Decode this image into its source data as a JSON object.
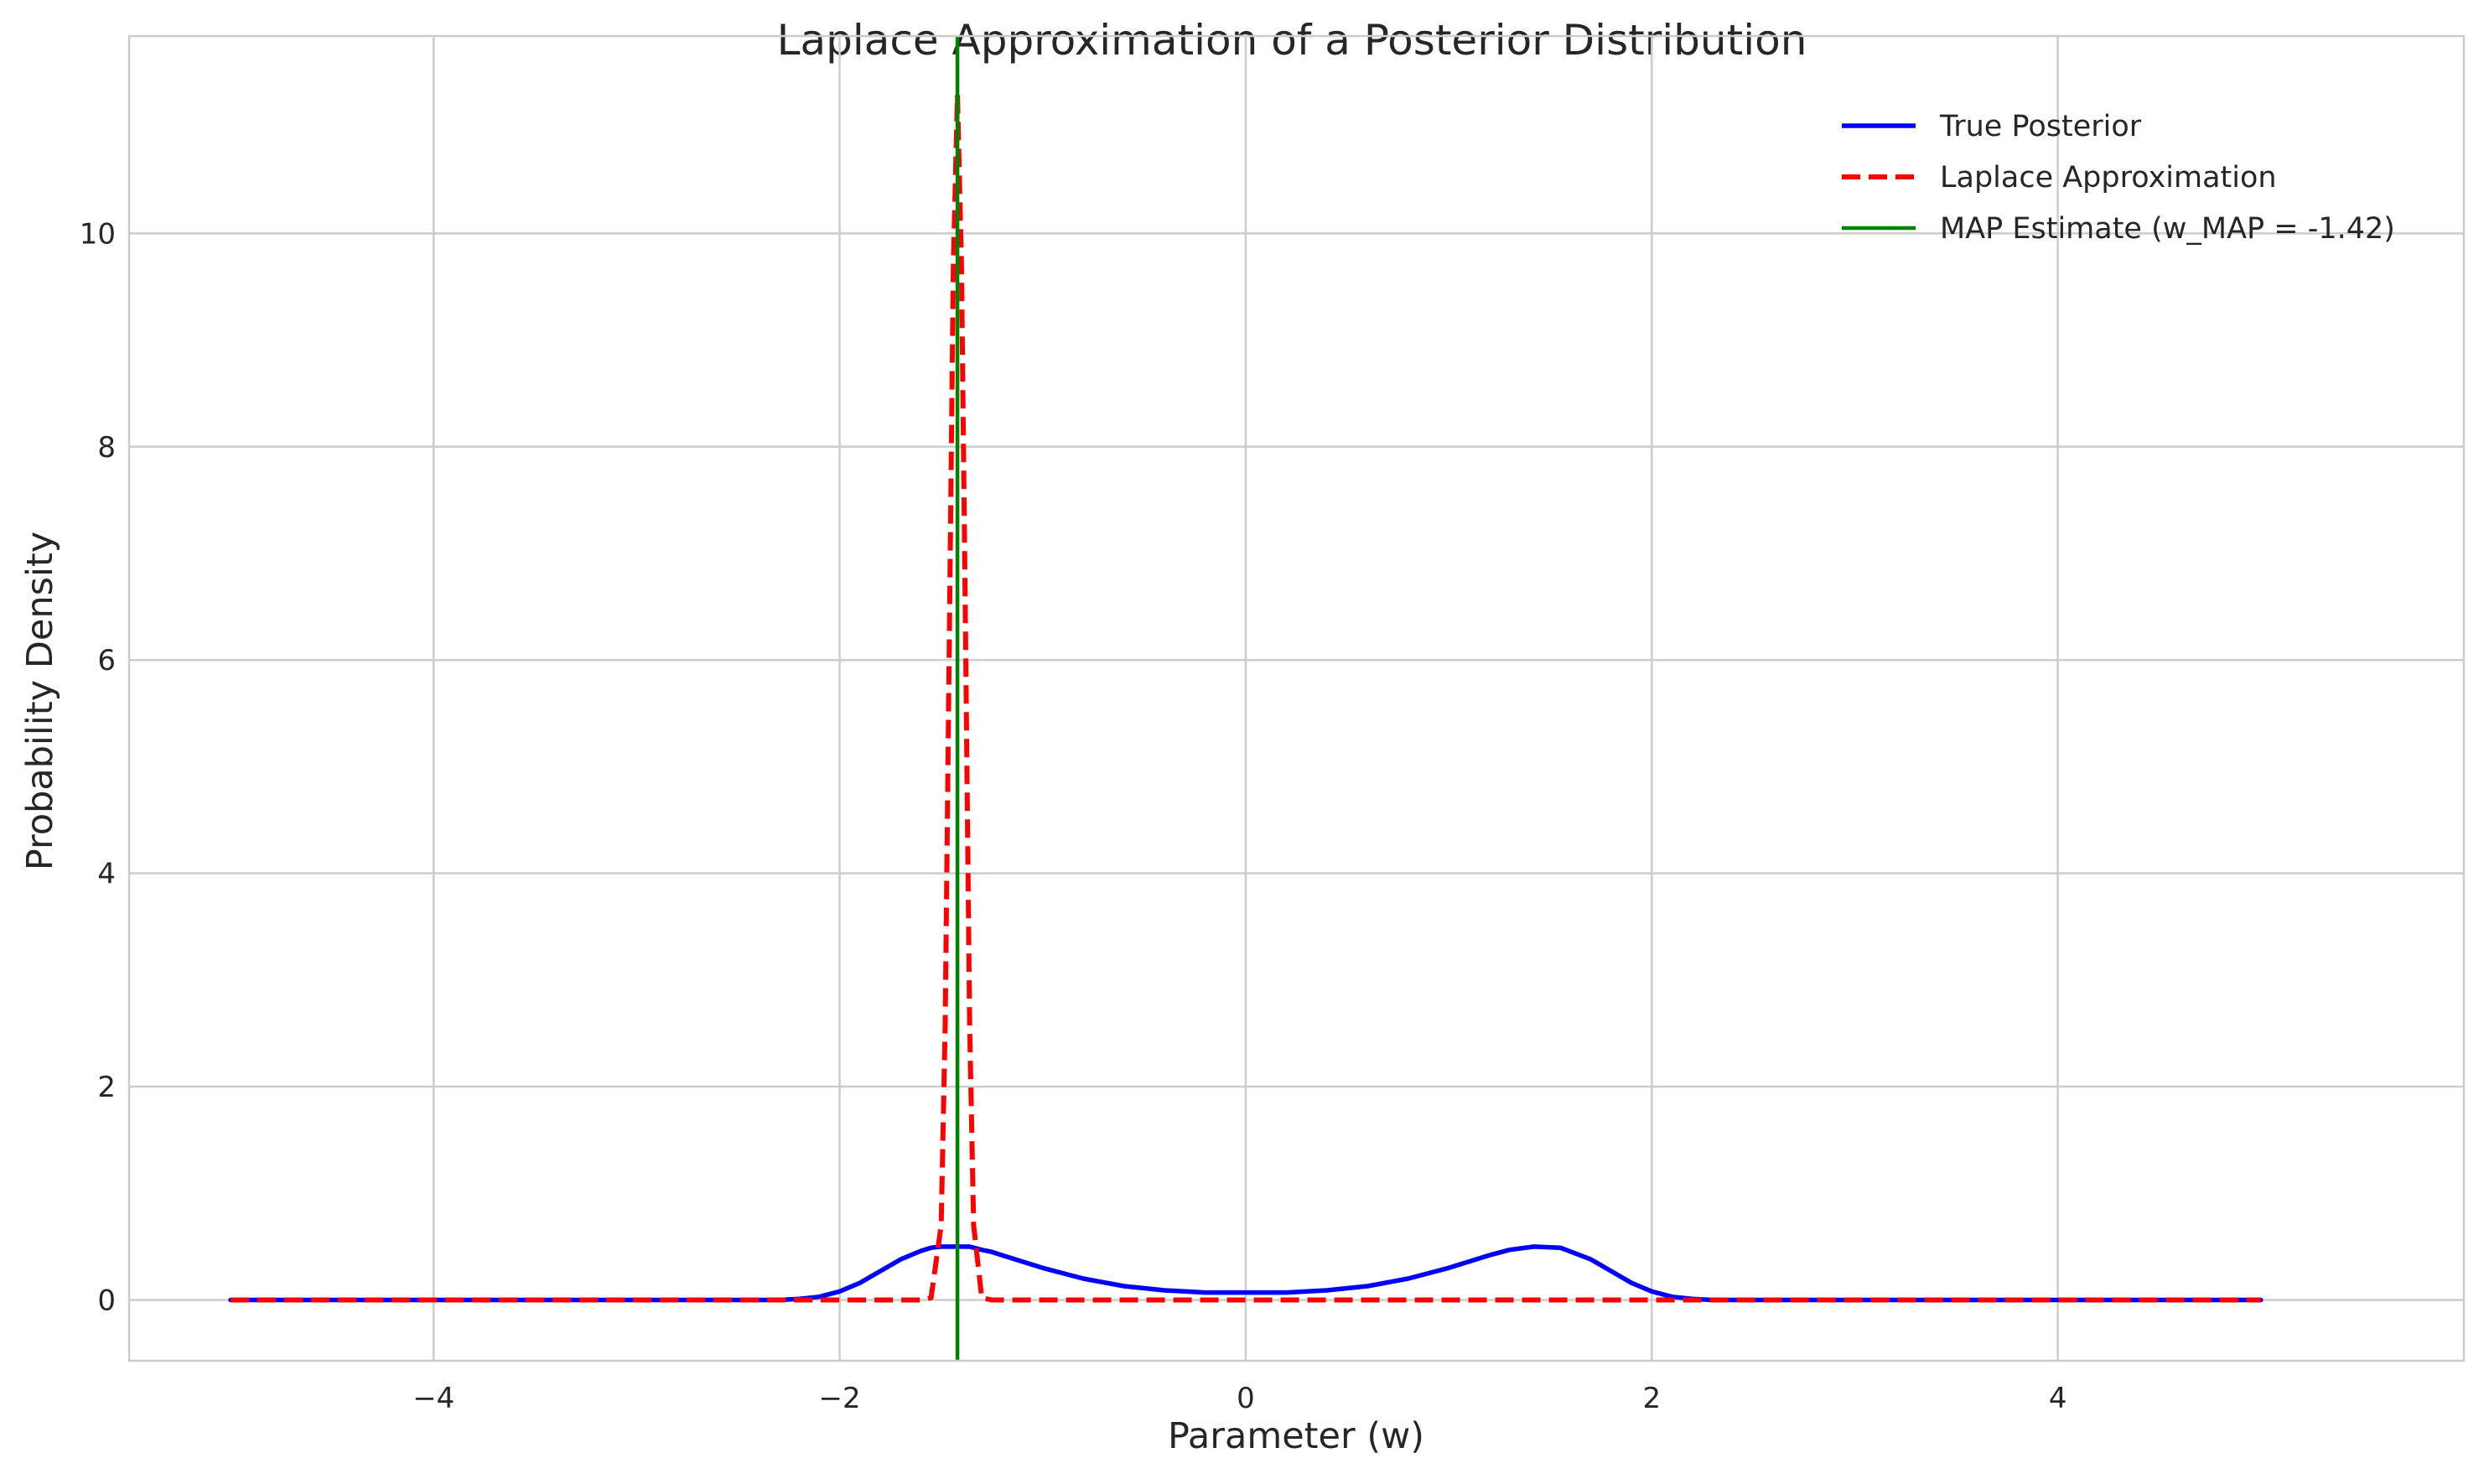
{
  "chart_data": {
    "type": "line",
    "title": "Laplace Approximation of a Posterior Distribution",
    "xlabel": "Parameter (w)",
    "ylabel": "Probability Density",
    "xlim": [
      -5.5,
      6.0
    ],
    "ylim": [
      -0.57,
      11.85
    ],
    "xticks": [
      -4,
      -2,
      0,
      2,
      4
    ],
    "xtick_labels": [
      "−4",
      "−2",
      "0",
      "2",
      "4"
    ],
    "yticks": [
      0,
      2,
      4,
      6,
      8,
      10
    ],
    "ytick_labels": [
      "0",
      "2",
      "4",
      "6",
      "8",
      "10"
    ],
    "grid": true,
    "legend_position": "top-right",
    "x": [
      -5.0,
      -4.5,
      -4.0,
      -3.5,
      -3.0,
      -2.5,
      -2.3,
      -2.2,
      -2.1,
      -2.0,
      -1.9,
      -1.8,
      -1.7,
      -1.6,
      -1.55,
      -1.5,
      -1.48,
      -1.46,
      -1.44,
      -1.42,
      -1.4,
      -1.38,
      -1.36,
      -1.34,
      -1.3,
      -1.25,
      -1.2,
      -1.1,
      -1.0,
      -0.8,
      -0.6,
      -0.4,
      -0.2,
      0.0,
      0.2,
      0.4,
      0.6,
      0.8,
      1.0,
      1.2,
      1.3,
      1.42,
      1.55,
      1.7,
      1.8,
      1.9,
      2.0,
      2.1,
      2.2,
      2.3,
      2.5,
      3.0,
      3.5,
      4.0,
      4.5,
      5.0
    ],
    "series": [
      {
        "name": "True Posterior",
        "color": "#0000ff",
        "style": "solid",
        "values": [
          0.0,
          0.0,
          0.0,
          0.0,
          0.0,
          0.0,
          0.0,
          0.01,
          0.03,
          0.08,
          0.16,
          0.27,
          0.38,
          0.46,
          0.49,
          0.5,
          0.5,
          0.5,
          0.5,
          0.5,
          0.5,
          0.5,
          0.5,
          0.49,
          0.47,
          0.45,
          0.42,
          0.36,
          0.3,
          0.2,
          0.13,
          0.09,
          0.07,
          0.07,
          0.07,
          0.09,
          0.13,
          0.2,
          0.3,
          0.42,
          0.47,
          0.5,
          0.49,
          0.38,
          0.27,
          0.16,
          0.08,
          0.03,
          0.01,
          0.0,
          0.0,
          0.0,
          0.0,
          0.0,
          0.0,
          0.0
        ]
      },
      {
        "name": "Laplace Approximation",
        "color": "#ff0000",
        "style": "dashed",
        "values": [
          0.0,
          0.0,
          0.0,
          0.0,
          0.0,
          0.0,
          0.0,
          0.0,
          0.0,
          0.0,
          0.0,
          0.0,
          0.0,
          0.0,
          0.02,
          0.7,
          2.6,
          6.2,
          9.7,
          11.3,
          9.7,
          6.2,
          2.6,
          0.7,
          0.02,
          0.0,
          0.0,
          0.0,
          0.0,
          0.0,
          0.0,
          0.0,
          0.0,
          0.0,
          0.0,
          0.0,
          0.0,
          0.0,
          0.0,
          0.0,
          0.0,
          0.0,
          0.0,
          0.0,
          0.0,
          0.0,
          0.0,
          0.0,
          0.0,
          0.0,
          0.0,
          0.0,
          0.0,
          0.0,
          0.0,
          0.0
        ]
      }
    ],
    "vline": {
      "name": "MAP Estimate (w_MAP = -1.42)",
      "x": -1.42,
      "color": "#008000"
    }
  }
}
